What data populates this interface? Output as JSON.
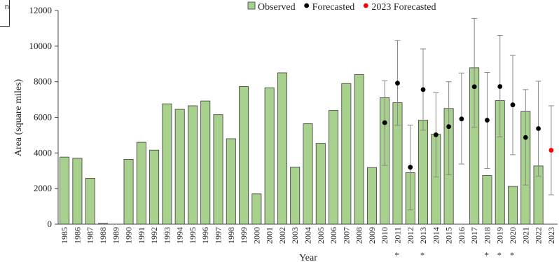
{
  "corner_fragment": "n",
  "chart_data": {
    "type": "bar",
    "ylabel": "Area (square miles)",
    "xlabel": "Year",
    "ylim": [
      0,
      12000
    ],
    "yticks": [
      0,
      2000,
      4000,
      6000,
      8000,
      10000,
      12000
    ],
    "grid": false,
    "legend_placement": "top",
    "colors": {
      "bar_fill": "#a9d18e",
      "bar_stroke": "#3a3a3a",
      "forecast_dot": "#000000",
      "forecast_2023_dot": "#ff0000",
      "error_bar": "#888888"
    },
    "categories": [
      "1985",
      "1986",
      "1987",
      "1988",
      "1989",
      "1990",
      "1991",
      "1992",
      "1993",
      "1994",
      "1995",
      "1996",
      "1997",
      "1998",
      "1999",
      "2000",
      "2001",
      "2002",
      "2003",
      "2004",
      "2005",
      "2006",
      "2007",
      "2008",
      "2009",
      "2010",
      "2011",
      "2012",
      "2013",
      "2014",
      "2015",
      "2016",
      "2017",
      "2018",
      "2019",
      "2020",
      "2021",
      "2022",
      "2023"
    ],
    "starred_categories": [
      "2011",
      "2013",
      "2018",
      "2019",
      "2020"
    ],
    "star_symbol": "*",
    "series": [
      {
        "name": "Observed",
        "kind": "bar",
        "values": [
          3770,
          3700,
          2580,
          40,
          null,
          3640,
          4600,
          4160,
          6760,
          6450,
          6650,
          6920,
          6150,
          4800,
          7730,
          1700,
          7660,
          8500,
          3210,
          5640,
          4540,
          6390,
          7900,
          8400,
          3180,
          7100,
          6820,
          2890,
          5840,
          5050,
          6500,
          null,
          8780,
          2730,
          6940,
          2120,
          6330,
          3270,
          null
        ]
      },
      {
        "name": "Forecasted",
        "kind": "point",
        "values": [
          null,
          null,
          null,
          null,
          null,
          null,
          null,
          null,
          null,
          null,
          null,
          null,
          null,
          null,
          null,
          null,
          null,
          null,
          null,
          null,
          null,
          null,
          null,
          null,
          null,
          5700,
          7920,
          3200,
          7560,
          5020,
          5480,
          5910,
          7720,
          5840,
          7730,
          6700,
          4870,
          5370,
          null
        ],
        "error_low": [
          null,
          null,
          null,
          null,
          null,
          null,
          null,
          null,
          null,
          null,
          null,
          null,
          null,
          null,
          null,
          null,
          null,
          null,
          null,
          null,
          null,
          null,
          null,
          null,
          null,
          3300,
          5550,
          800,
          5280,
          2650,
          2780,
          3380,
          5450,
          3130,
          4900,
          3900,
          2200,
          2700,
          null
        ],
        "error_high": [
          null,
          null,
          null,
          null,
          null,
          null,
          null,
          null,
          null,
          null,
          null,
          null,
          null,
          null,
          null,
          null,
          null,
          null,
          null,
          null,
          null,
          null,
          null,
          null,
          null,
          8060,
          10320,
          5560,
          9840,
          7380,
          8000,
          8490,
          11550,
          8520,
          10600,
          9480,
          7560,
          8030,
          null
        ]
      },
      {
        "name": "2023 Forecasted",
        "kind": "point",
        "values": [
          null,
          null,
          null,
          null,
          null,
          null,
          null,
          null,
          null,
          null,
          null,
          null,
          null,
          null,
          null,
          null,
          null,
          null,
          null,
          null,
          null,
          null,
          null,
          null,
          null,
          null,
          null,
          null,
          null,
          null,
          null,
          null,
          null,
          null,
          null,
          null,
          null,
          null,
          4150
        ],
        "error_low": [
          null,
          null,
          null,
          null,
          null,
          null,
          null,
          null,
          null,
          null,
          null,
          null,
          null,
          null,
          null,
          null,
          null,
          null,
          null,
          null,
          null,
          null,
          null,
          null,
          null,
          null,
          null,
          null,
          null,
          null,
          null,
          null,
          null,
          null,
          null,
          null,
          null,
          null,
          1650
        ],
        "error_high": [
          null,
          null,
          null,
          null,
          null,
          null,
          null,
          null,
          null,
          null,
          null,
          null,
          null,
          null,
          null,
          null,
          null,
          null,
          null,
          null,
          null,
          null,
          null,
          null,
          null,
          null,
          null,
          null,
          null,
          null,
          null,
          null,
          null,
          null,
          null,
          null,
          null,
          null,
          6650
        ]
      }
    ]
  }
}
